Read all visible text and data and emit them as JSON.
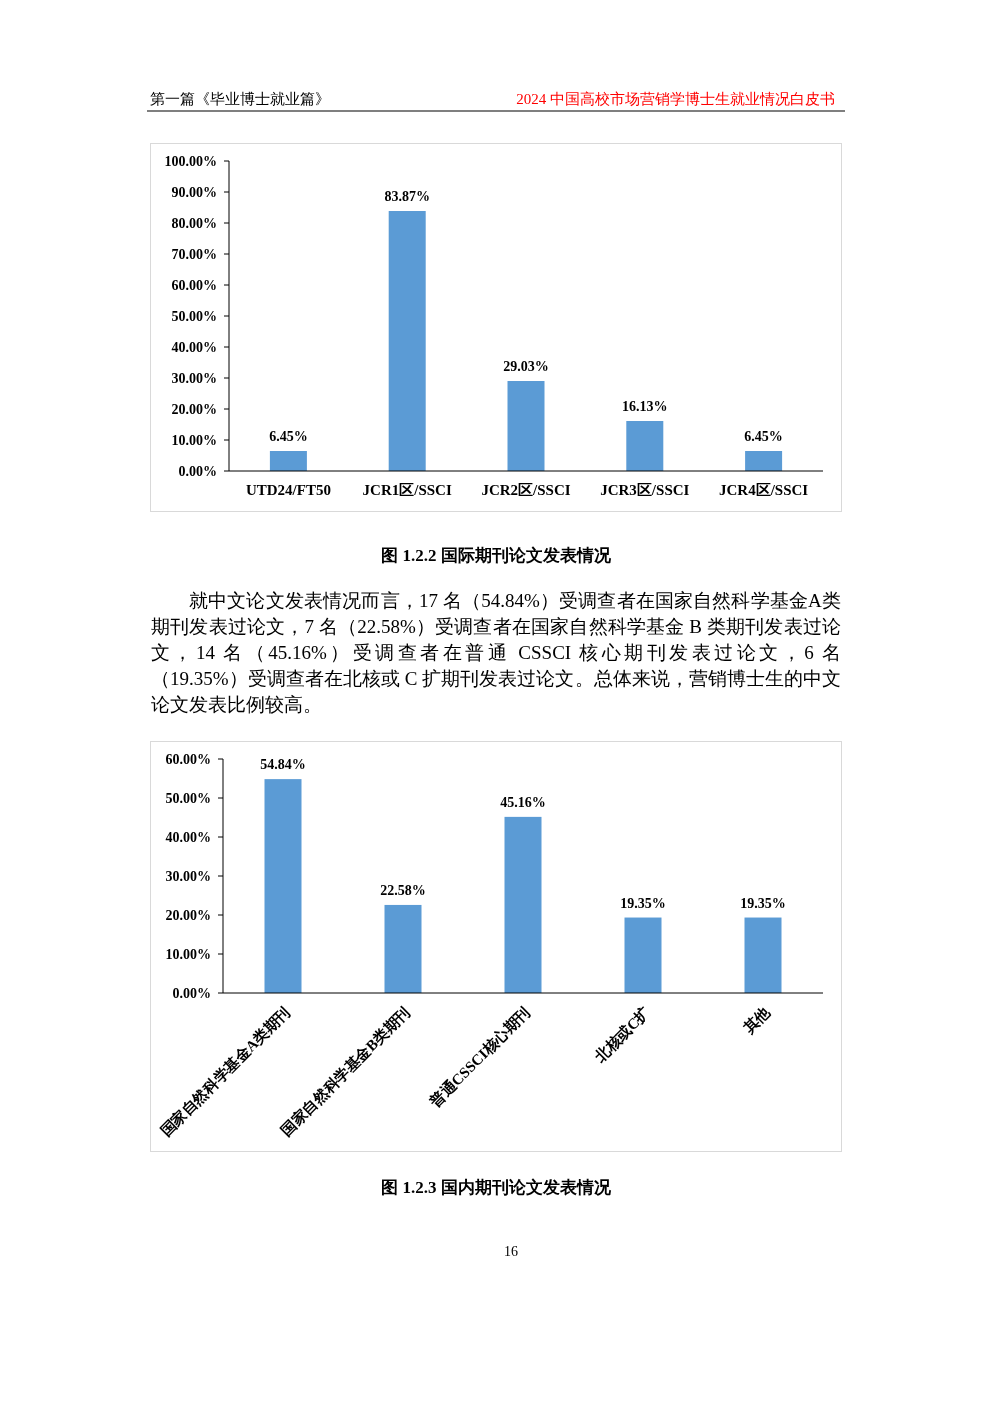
{
  "chart_data": [
    {
      "type": "bar",
      "title": "图 1.2.2 国际期刊论文发表情况",
      "annotations": [
        "第一篇《毕业博士就业篇》",
        "2024 中国高校市场营销学博士生就业情况白皮书",
        "就中文论文发表情况而言，17 名（54.84%）受调查者在国家自然科学基金A类期刊发表过论文，7 名（22.58%）受调查者在国家自然科学基金 B 类期刊发表过论文，14 名（45.16%）受调查者在普通 CSSCI 核心期刊发表过论文，6 名（19.35%）受调查者在北核或 C 扩期刊发表过论文。总体来说，营销博士生的中文论文发表比例较高。"
      ],
      "categories": [
        "UTD24/FT50",
        "JCR1区/SSCI",
        "JCR2区/SSCI",
        "JCR3区/SSCI",
        "JCR4区/SSCI"
      ],
      "values": [
        6.45,
        83.87,
        29.03,
        16.13,
        6.45
      ],
      "value_labels": [
        "6.45%",
        "83.87%",
        "29.03%",
        "16.13%",
        "6.45%"
      ],
      "color": "#5b9bd5",
      "ylim": [
        0,
        100
      ],
      "yticks": [
        {
          "value": 0,
          "label": "0.00%"
        },
        {
          "value": 10,
          "label": "10.00%"
        },
        {
          "value": 20,
          "label": "20.00%"
        },
        {
          "value": 30,
          "label": "30.00%"
        },
        {
          "value": 40,
          "label": "40.00%"
        },
        {
          "value": 50,
          "label": "50.00%"
        },
        {
          "value": 60,
          "label": "60.00%"
        },
        {
          "value": 70,
          "label": "70.00%"
        },
        {
          "value": 80,
          "label": "80.00%"
        },
        {
          "value": 90,
          "label": "90.00%"
        },
        {
          "value": 100,
          "label": "100.00%"
        }
      ]
    },
    {
      "type": "bar",
      "title": "图 1.2.3 国内期刊论文发表情况",
      "annotations": [
        "16"
      ],
      "categories": [
        "国家自然科学基金A类期刊",
        "国家自然科学基金B类期刊",
        "普通CSSCI核心期刊",
        "北核或C扩",
        "其他"
      ],
      "values": [
        54.84,
        22.58,
        45.16,
        19.35,
        19.35
      ],
      "value_labels": [
        "54.84%",
        "22.58%",
        "45.16%",
        "19.35%",
        "19.35%"
      ],
      "color": "#5b9bd5",
      "ylim": [
        0,
        60
      ],
      "yticks": [
        {
          "value": 0,
          "label": "0.00%"
        },
        {
          "value": 10,
          "label": "10.00%"
        },
        {
          "value": 20,
          "label": "20.00%"
        },
        {
          "value": 30,
          "label": "30.00%"
        },
        {
          "value": 40,
          "label": "40.00%"
        },
        {
          "value": 50,
          "label": "50.00%"
        },
        {
          "value": 60,
          "label": "60.00%"
        }
      ]
    }
  ]
}
